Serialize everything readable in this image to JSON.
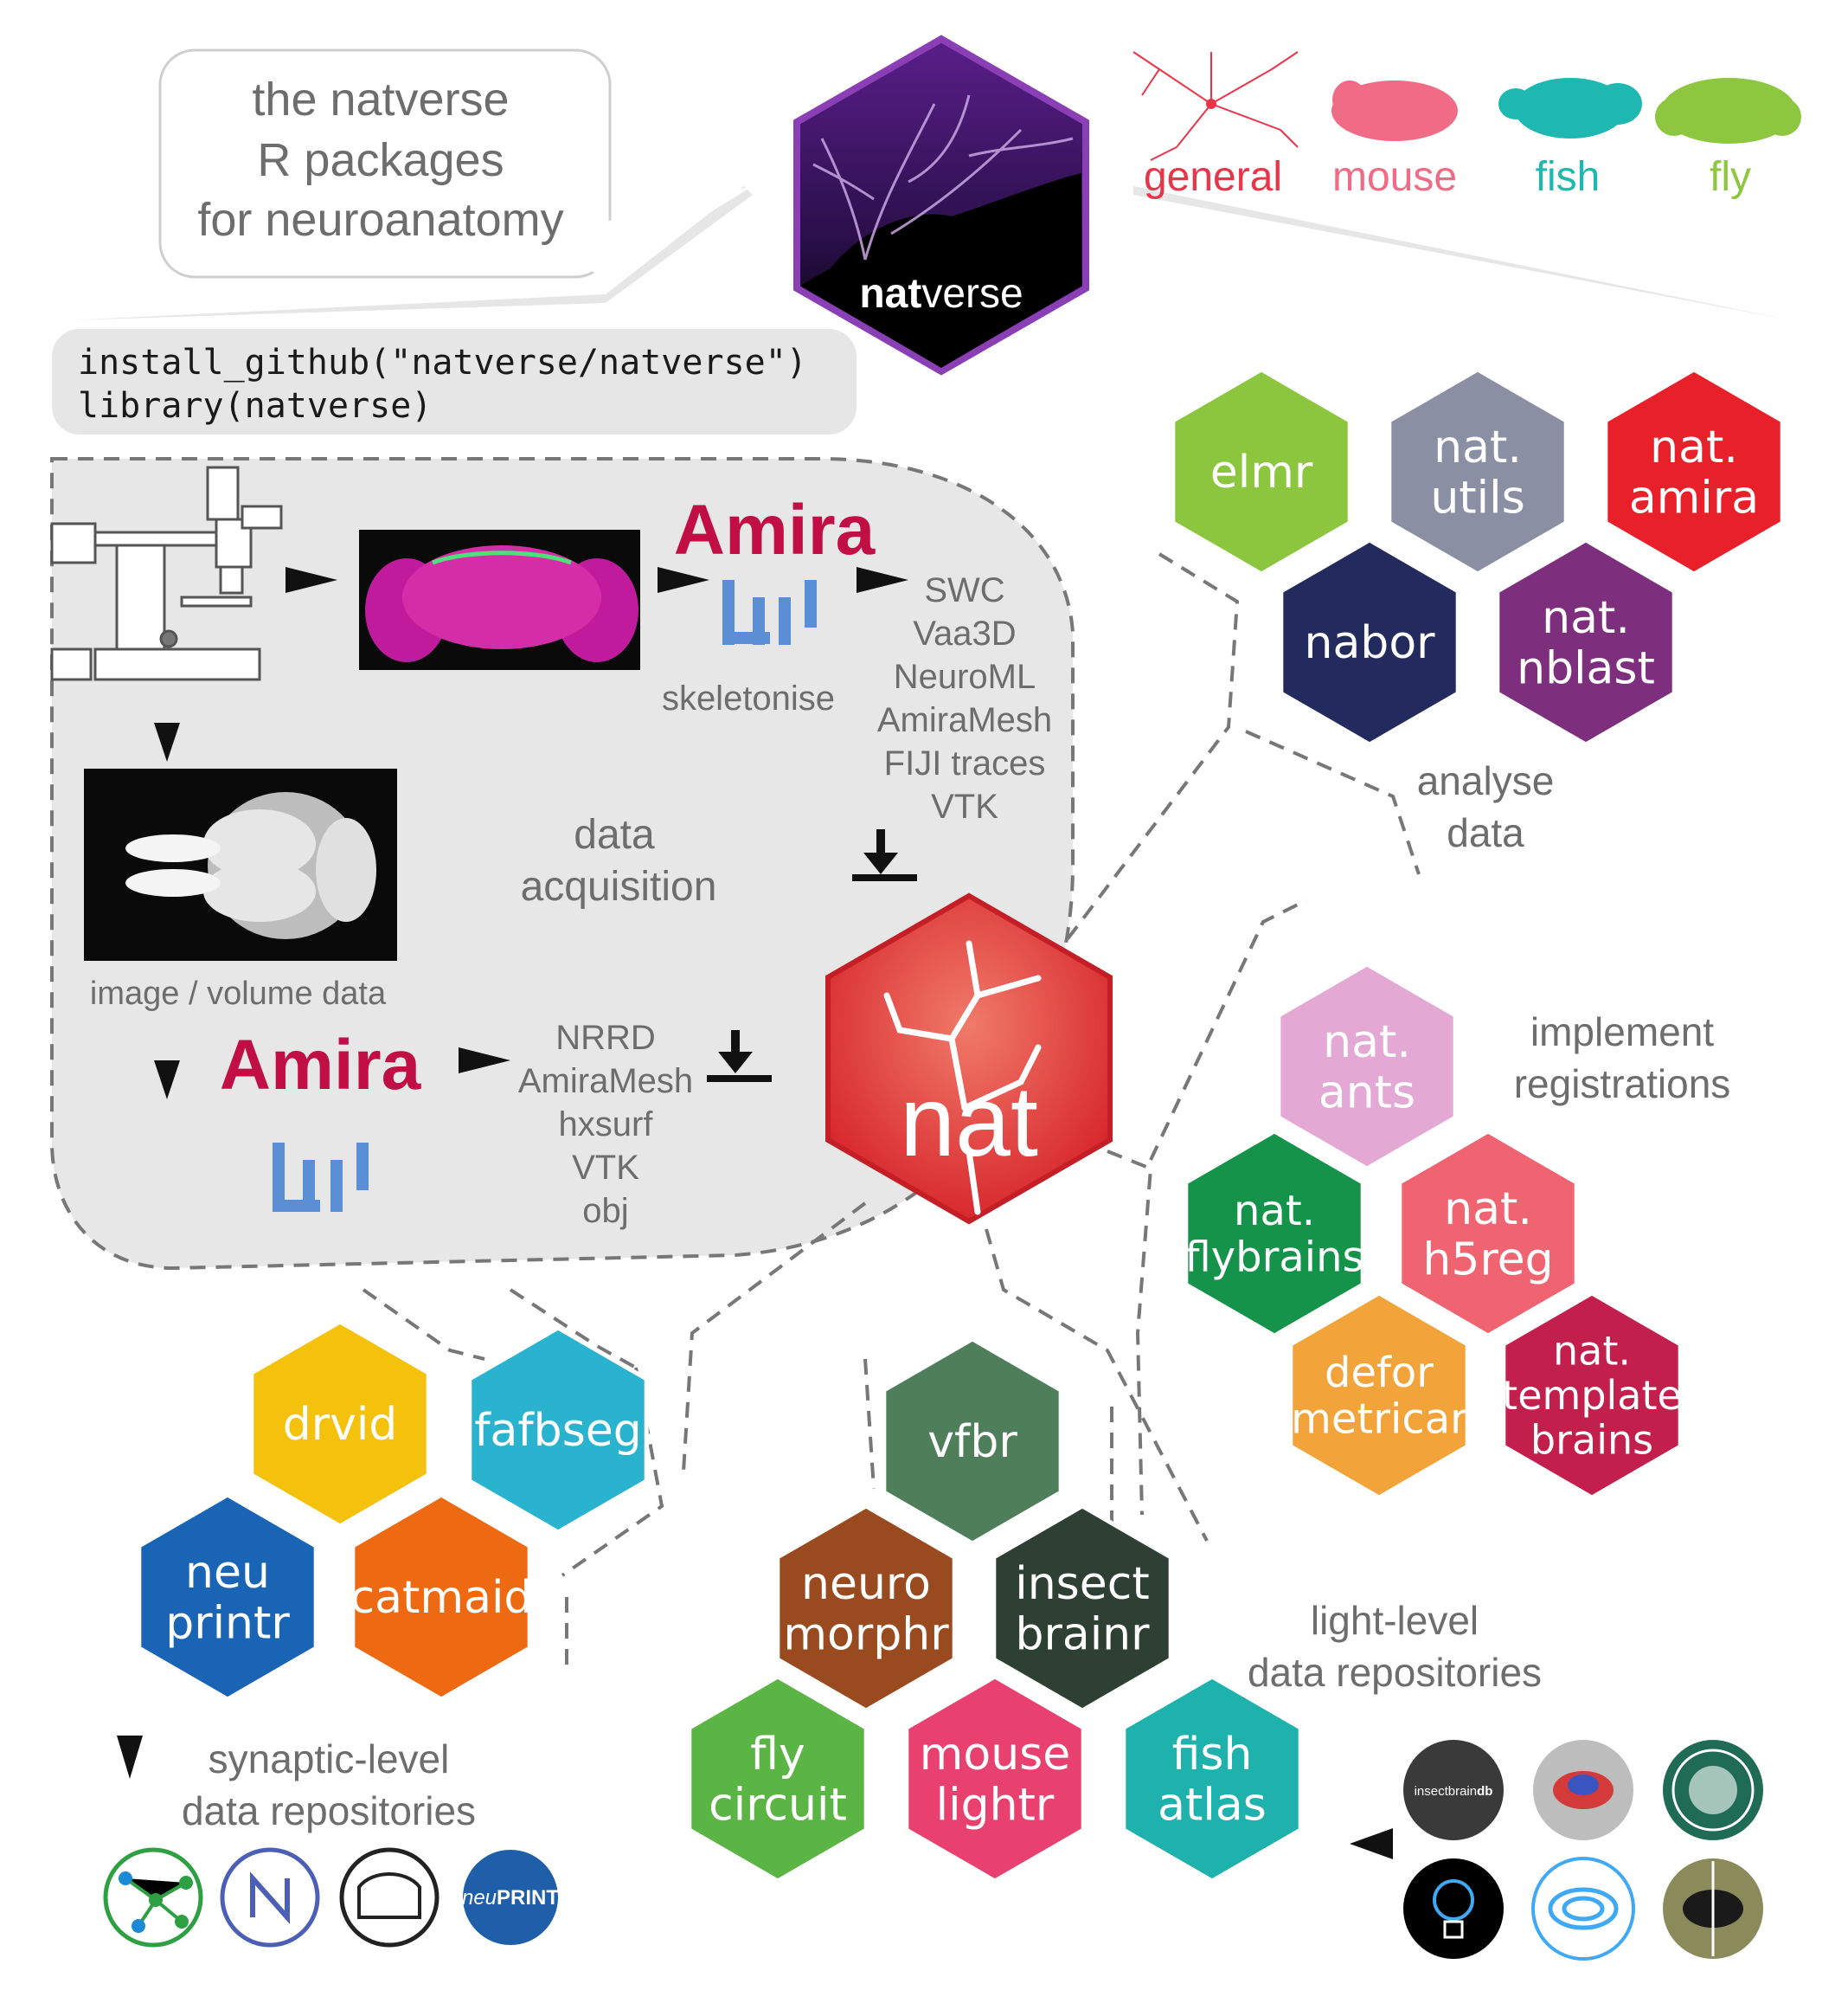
{
  "bubble": {
    "line1": "the natverse",
    "line2": "R packages",
    "line3": "for neuroanatomy"
  },
  "logo": {
    "text_bold": "nat",
    "text_rest": "verse"
  },
  "species": [
    {
      "label": "general",
      "color": "#e8354a",
      "icon": "neuron-icon"
    },
    {
      "label": "mouse",
      "color": "#ef6b86",
      "icon": "mouse-brain-icon"
    },
    {
      "label": "fish",
      "color": "#1eb8b1",
      "icon": "fish-brain-icon"
    },
    {
      "label": "fly",
      "color": "#8dc63f",
      "icon": "fly-brain-icon"
    }
  ],
  "code": {
    "line1": "install_github(\"natverse/natverse\")",
    "line2": "library(natverse)"
  },
  "acquisition": {
    "amira_top": "Amira",
    "skeletonise": "skeletonise",
    "formats_top": [
      "SWC",
      "Vaa3D",
      "NeuroML",
      "AmiraMesh",
      "FIJI traces",
      "VTK"
    ],
    "data_acquisition": [
      "data",
      "acquisition"
    ],
    "image_volume": "image / volume data",
    "amira_bottom": "Amira",
    "formats_bottom": [
      "NRRD",
      "AmiraMesh",
      "hxsurf",
      "VTK",
      "obj"
    ]
  },
  "center": {
    "label": "nat",
    "color": "#e8413c"
  },
  "packages": {
    "analyse": [
      {
        "lines": [
          "elmr"
        ],
        "color": "#8cc63f"
      },
      {
        "lines": [
          "nat.",
          "utils"
        ],
        "color": "#8a8fa3"
      },
      {
        "lines": [
          "nat.",
          "amira"
        ],
        "color": "#e8202a"
      },
      {
        "lines": [
          "nabor"
        ],
        "color": "#232b5e"
      },
      {
        "lines": [
          "nat.",
          "nblast"
        ],
        "color": "#7d2f7e"
      }
    ],
    "registrations": [
      {
        "lines": [
          "nat.",
          "ants"
        ],
        "color": "#e3a8d4"
      },
      {
        "lines": [
          "nat.",
          "flybrains"
        ],
        "color": "#15934a"
      },
      {
        "lines": [
          "nat.",
          "h5reg"
        ],
        "color": "#ef6470"
      },
      {
        "lines": [
          "defor",
          "metricar"
        ],
        "color": "#f2a33a"
      },
      {
        "lines": [
          "nat.",
          "template",
          "brains"
        ],
        "color": "#c31f4c"
      }
    ],
    "synaptic": [
      {
        "lines": [
          "drvid"
        ],
        "color": "#f4c20d"
      },
      {
        "lines": [
          "fafbseg"
        ],
        "color": "#2ab3cf"
      },
      {
        "lines": [
          "neu",
          "printr"
        ],
        "color": "#1a64b5"
      },
      {
        "lines": [
          "catmaid"
        ],
        "color": "#ee6a12"
      }
    ],
    "light": [
      {
        "lines": [
          "vfbr"
        ],
        "color": "#4e7f5a"
      },
      {
        "lines": [
          "neuro",
          "morphr"
        ],
        "color": "#9a4a1f"
      },
      {
        "lines": [
          "insect",
          "brainr"
        ],
        "color": "#2e4034"
      },
      {
        "lines": [
          "fly",
          "circuit"
        ],
        "color": "#5bb545"
      },
      {
        "lines": [
          "mouse",
          "lightr"
        ],
        "color": "#e8416f"
      },
      {
        "lines": [
          "fish",
          "atlas"
        ],
        "color": "#1fb2ac"
      }
    ]
  },
  "labels": {
    "analyse": [
      "analyse",
      "data"
    ],
    "registrations": [
      "implement",
      "registrations"
    ],
    "light": [
      "light-level",
      "data repositories"
    ],
    "synaptic": [
      "synaptic-level",
      "data repositories"
    ]
  },
  "logos_right": {
    "insectbraindb_a": "insectbrain",
    "insectbraindb_b": "db"
  },
  "logos_left": {
    "neuprint_a": "neu",
    "neuprint_b": "PRINT"
  }
}
